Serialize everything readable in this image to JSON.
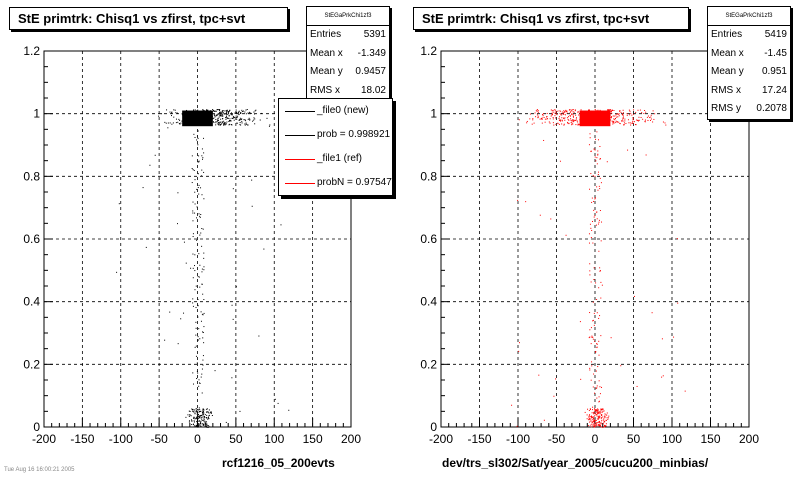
{
  "footer": "Tue Aug 16 16:00:21 2005",
  "chart_data": [
    {
      "type": "scatter",
      "title": "StE primtrk: Chisq1 vs zfirst, tpc+svt",
      "xlabel": "rcf1216_05_200evts",
      "ylabel": "",
      "xlim": [
        -200,
        200
      ],
      "ylim": [
        0,
        1.2
      ],
      "x_ticks": [
        "-200",
        "-150",
        "-100",
        "-50",
        "0",
        "50",
        "100",
        "150",
        "200"
      ],
      "y_ticks": [
        "0",
        "0.2",
        "0.4",
        "0.6",
        "0.8",
        "1",
        "1.2"
      ],
      "grid": true,
      "marker_color": "#000000",
      "dense_region": {
        "x": [
          -20,
          20
        ],
        "y": [
          0.96,
          1.01
        ]
      },
      "band_rows": [
        {
          "label": "chisq1 near 1",
          "x_range": [
            -60,
            100
          ],
          "y": 0.99,
          "y_spread": 0.025,
          "count": 420
        },
        {
          "label": "chisq1 near 0",
          "x_range": [
            -20,
            25
          ],
          "y": 0.03,
          "y_spread": 0.03,
          "count": 170
        }
      ],
      "stem": {
        "x_range": [
          -8,
          8
        ],
        "y_range": [
          0.06,
          0.95
        ],
        "count": 120
      },
      "outliers": 40,
      "stats": {
        "name": "StEGaPrkChi1zf3",
        "entries_label": "Entries",
        "entries": "5391",
        "meanx_label": "Mean x",
        "meanx": "-1.349",
        "meany_label": "Mean y",
        "meany": "0.9457",
        "rmsx_label": "RMS x",
        "rmsx": "18.02"
      },
      "legend": [
        {
          "label": "_file0 (new)",
          "color": "#000000"
        },
        {
          "label": "prob = 0.998921",
          "color": "#000000"
        },
        {
          "label": "_file1 (ref)",
          "color": "#ff0000"
        },
        {
          "label": "probN = 0.975471",
          "color": "#ff0000"
        }
      ]
    },
    {
      "type": "scatter",
      "title": "StE primtrk: Chisq1 vs zfirst, tpc+svt",
      "xlabel": "dev/trs_sl302/Sat/year_2005/cucu200_minbias/",
      "ylabel": "",
      "xlim": [
        -200,
        200
      ],
      "ylim": [
        0,
        1.2
      ],
      "x_ticks": [
        "-200",
        "-150",
        "-100",
        "-50",
        "0",
        "50",
        "100",
        "150",
        "200"
      ],
      "y_ticks": [
        "0",
        "0.2",
        "0.4",
        "0.6",
        "0.8",
        "1",
        "1.2"
      ],
      "grid": true,
      "marker_color": "#ff0000",
      "dense_region": {
        "x": [
          -20,
          20
        ],
        "y": [
          0.96,
          1.01
        ]
      },
      "band_rows": [
        {
          "label": "chisq1 near 1",
          "x_range": [
            -120,
            110
          ],
          "y": 0.99,
          "y_spread": 0.025,
          "count": 420
        },
        {
          "label": "chisq1 near 0",
          "x_range": [
            -20,
            25
          ],
          "y": 0.03,
          "y_spread": 0.03,
          "count": 170
        }
      ],
      "stem": {
        "x_range": [
          -8,
          8
        ],
        "y_range": [
          0.06,
          0.95
        ],
        "count": 120
      },
      "outliers": 40,
      "stats": {
        "name": "StEGaPrkChi1zf3",
        "entries_label": "Entries",
        "entries": "5419",
        "meanx_label": "Mean x",
        "meanx": "-1.45",
        "meany_label": "Mean y",
        "meany": "0.951",
        "rmsx_label": "RMS x",
        "rmsx": "17.24",
        "rmsy_label": "RMS y",
        "rmsy": "0.2078"
      }
    }
  ]
}
